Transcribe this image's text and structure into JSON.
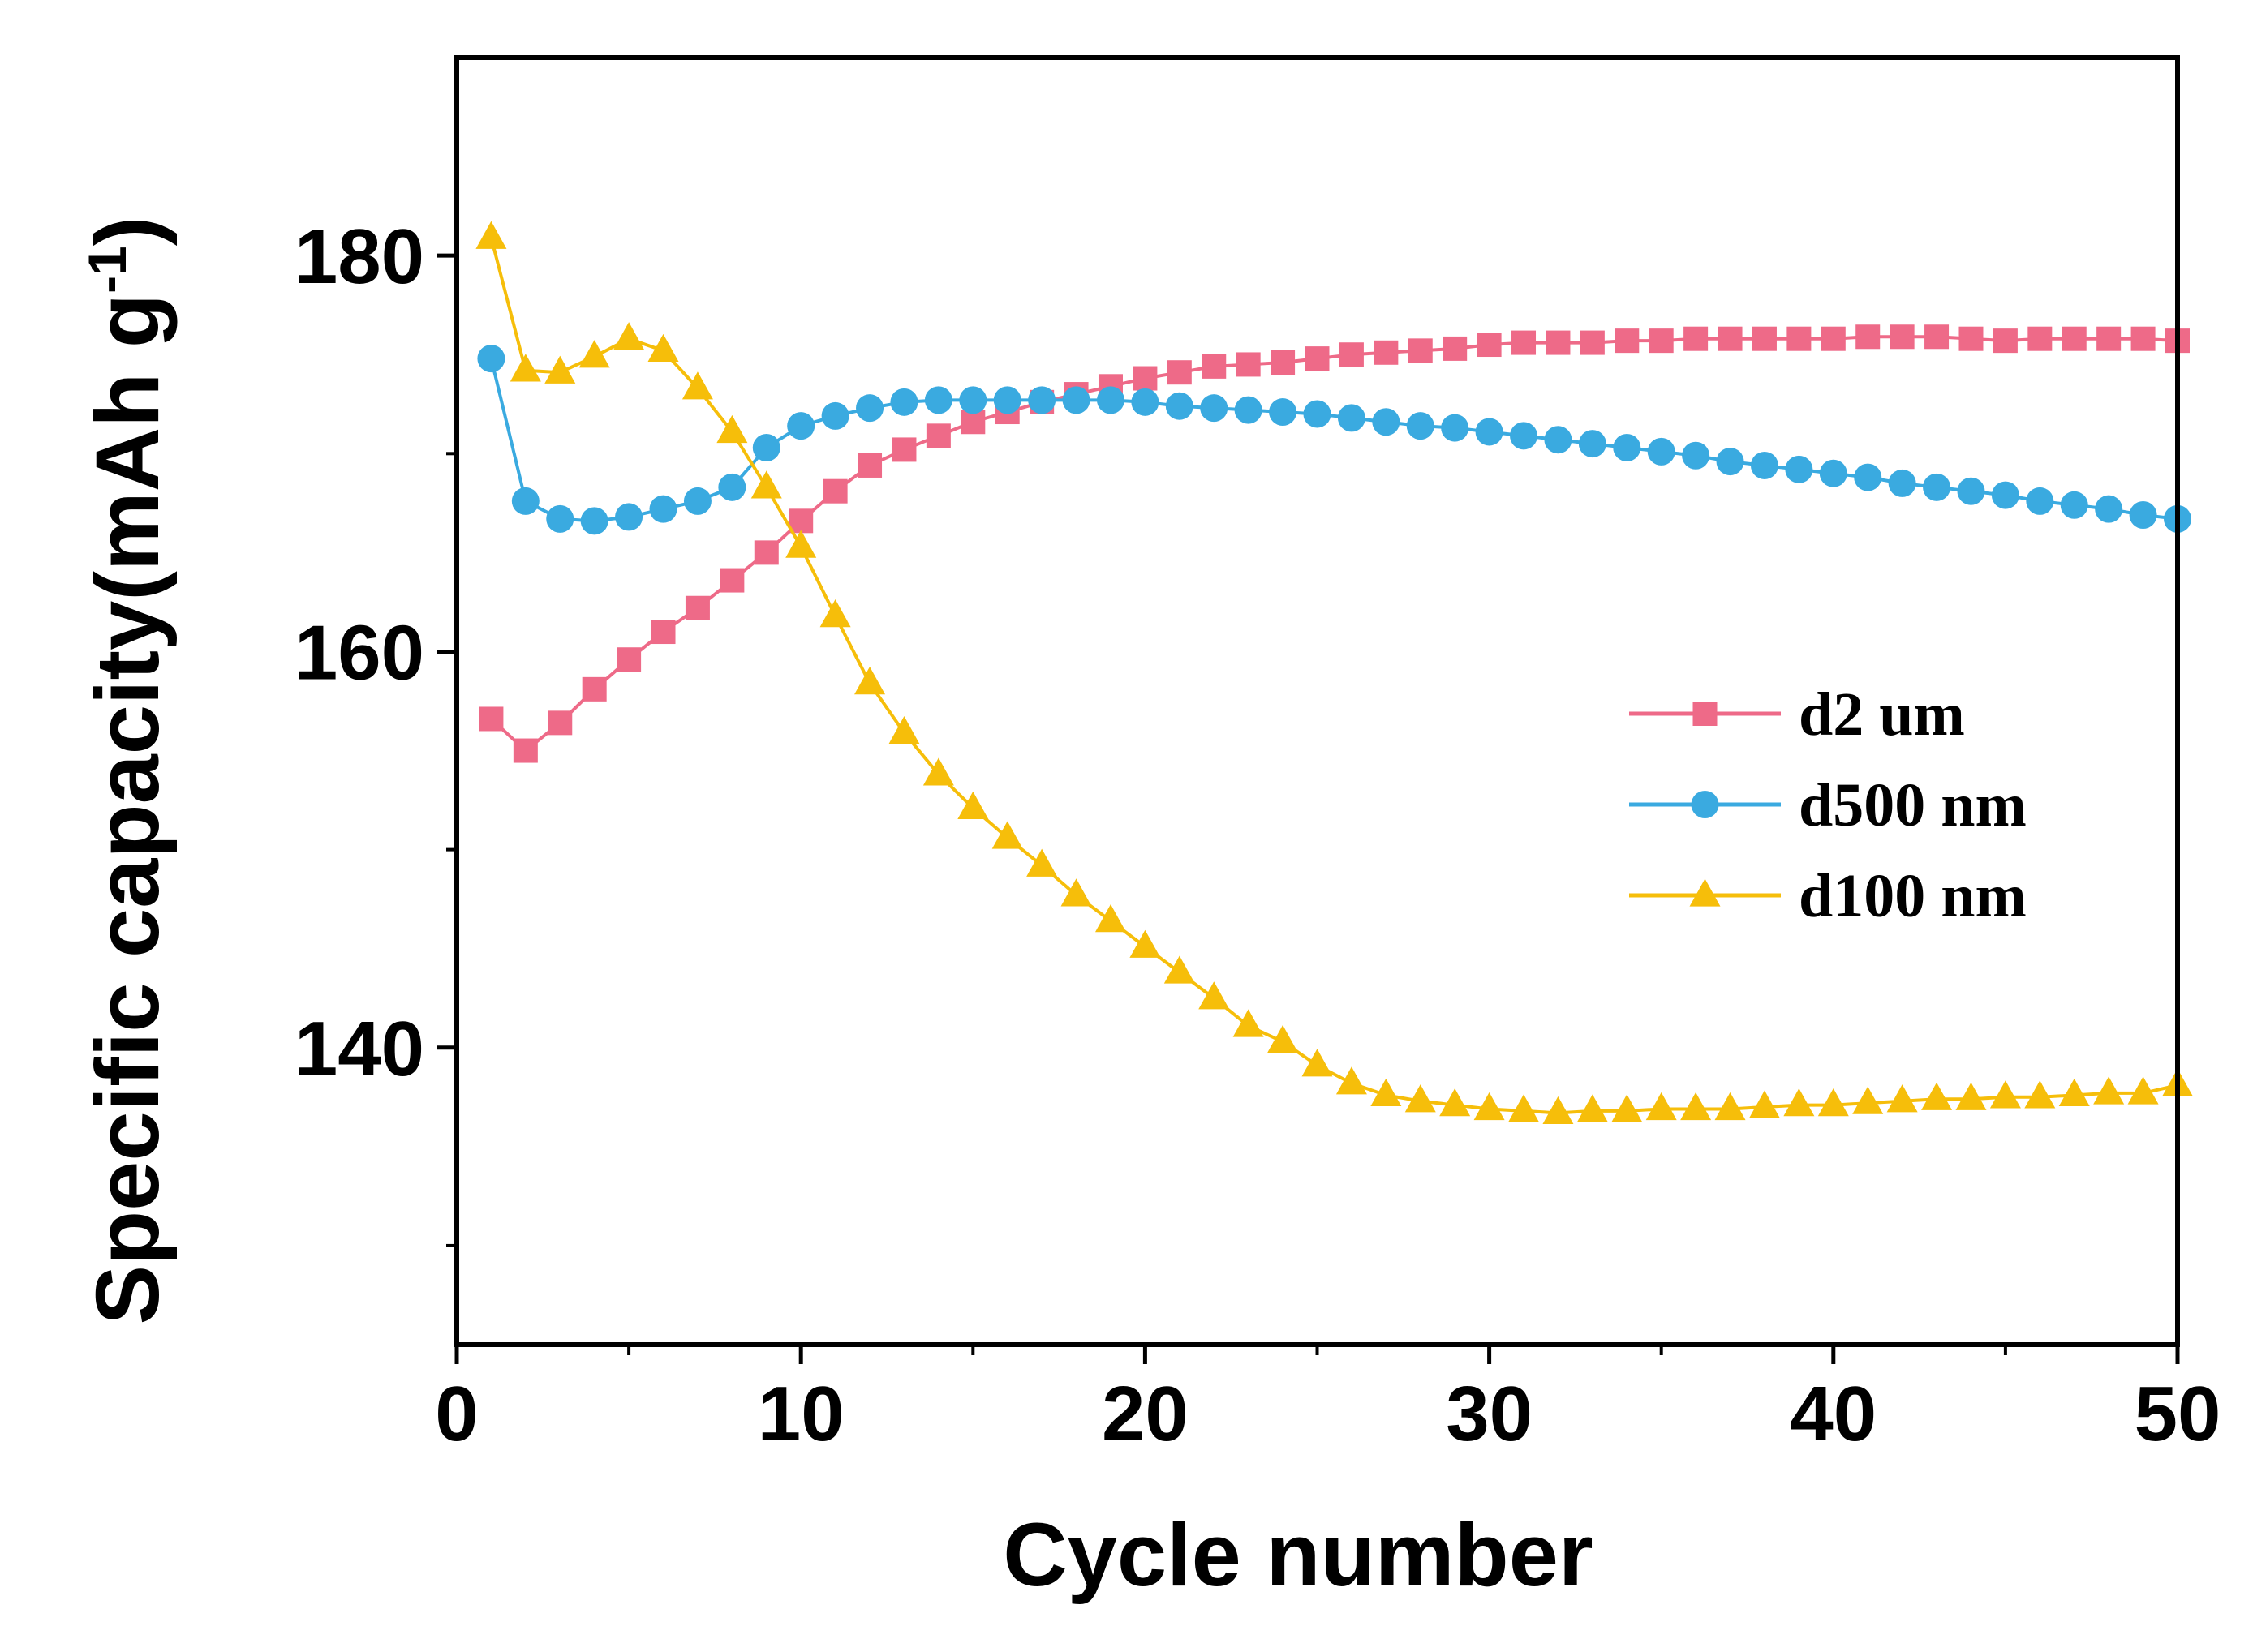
{
  "chart_data": {
    "type": "line",
    "title": "",
    "xlabel": "Cycle number",
    "ylabel_main": "Specific capacity(mAh g",
    "ylabel_sup": "-1",
    "ylabel_close": ")",
    "xlim": [
      0,
      50
    ],
    "ylim": [
      125,
      190
    ],
    "xticks": [
      0,
      10,
      20,
      30,
      40,
      50
    ],
    "yticks": [
      140,
      160,
      180
    ],
    "xticks_minor": [
      5,
      15,
      25,
      35,
      45
    ],
    "yticks_minor": [
      130,
      150,
      170
    ],
    "x": [
      1,
      2,
      3,
      4,
      5,
      6,
      7,
      8,
      9,
      10,
      11,
      12,
      13,
      14,
      15,
      16,
      17,
      18,
      19,
      20,
      21,
      22,
      23,
      24,
      25,
      26,
      27,
      28,
      29,
      30,
      31,
      32,
      33,
      34,
      35,
      36,
      37,
      38,
      39,
      40,
      41,
      42,
      43,
      44,
      45,
      46,
      47,
      48,
      49,
      50
    ],
    "legend_position": "center-right",
    "series": [
      {
        "name": "d2 um",
        "color": "#ee6a88",
        "marker": "square",
        "values": [
          156.6,
          155.0,
          156.4,
          158.1,
          159.6,
          161.0,
          162.2,
          163.6,
          165.0,
          166.6,
          168.1,
          169.4,
          170.2,
          170.9,
          171.6,
          172.1,
          172.6,
          173.0,
          173.4,
          173.8,
          174.1,
          174.4,
          174.5,
          174.6,
          174.8,
          175.0,
          175.1,
          175.2,
          175.3,
          175.5,
          175.6,
          175.6,
          175.6,
          175.7,
          175.7,
          175.8,
          175.8,
          175.8,
          175.8,
          175.8,
          175.9,
          175.9,
          175.9,
          175.8,
          175.7,
          175.8,
          175.8,
          175.8,
          175.8,
          175.7
        ]
      },
      {
        "name": "d500 nm",
        "color": "#3aaae0",
        "marker": "circle",
        "values": [
          174.8,
          167.6,
          166.7,
          166.6,
          166.8,
          167.2,
          167.6,
          168.3,
          170.3,
          171.4,
          171.9,
          172.3,
          172.6,
          172.7,
          172.7,
          172.7,
          172.7,
          172.7,
          172.7,
          172.6,
          172.4,
          172.3,
          172.2,
          172.1,
          172.0,
          171.8,
          171.6,
          171.4,
          171.3,
          171.1,
          170.9,
          170.7,
          170.5,
          170.3,
          170.1,
          169.9,
          169.6,
          169.4,
          169.2,
          169.0,
          168.8,
          168.5,
          168.3,
          168.1,
          167.9,
          167.6,
          167.4,
          167.2,
          166.9,
          166.7
        ]
      },
      {
        "name": "d100 nm",
        "color": "#f6be0a",
        "marker": "triangle",
        "values": [
          180.9,
          174.2,
          174.1,
          174.9,
          175.8,
          175.2,
          173.3,
          171.1,
          168.3,
          165.3,
          161.8,
          158.4,
          155.9,
          153.8,
          152.1,
          150.6,
          149.2,
          147.7,
          146.4,
          145.1,
          143.8,
          142.5,
          141.1,
          140.3,
          139.1,
          138.2,
          137.6,
          137.3,
          137.1,
          136.9,
          136.8,
          136.7,
          136.8,
          136.8,
          136.9,
          136.9,
          136.9,
          137.0,
          137.1,
          137.1,
          137.2,
          137.3,
          137.4,
          137.4,
          137.5,
          137.5,
          137.6,
          137.7,
          137.7,
          138.1
        ]
      }
    ]
  }
}
